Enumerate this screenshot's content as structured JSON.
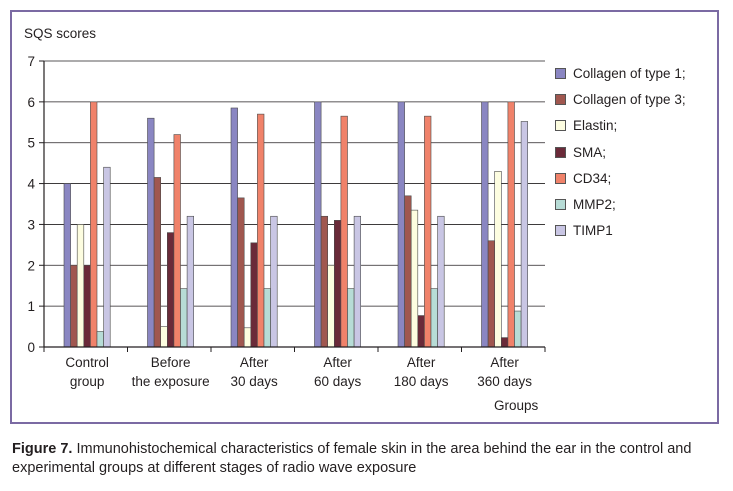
{
  "chart_data": {
    "type": "bar",
    "ylabel": "SQS scores",
    "xlabel": "Groups",
    "ylim": [
      0,
      7
    ],
    "yticks": [
      0,
      1,
      2,
      3,
      4,
      5,
      6,
      7
    ],
    "grid": true,
    "legend_position": "right",
    "categories": [
      [
        "Control",
        "group"
      ],
      [
        "Before",
        "the exposure"
      ],
      [
        "After",
        "30 days"
      ],
      [
        "After",
        "60 days"
      ],
      [
        "After",
        "180 days"
      ],
      [
        "After",
        "360 days"
      ]
    ],
    "series": [
      {
        "name": "Collagen of type 1;",
        "color": "#8a86c2",
        "values": [
          4.0,
          5.6,
          5.85,
          6.0,
          6.0,
          6.0
        ]
      },
      {
        "name": "Collagen of type 3;",
        "color": "#a0574f",
        "values": [
          2.0,
          4.15,
          3.65,
          3.2,
          3.7,
          2.6
        ]
      },
      {
        "name": "Elastin;",
        "color": "#fdfde0",
        "values": [
          3.0,
          0.5,
          0.47,
          2.0,
          3.35,
          4.3
        ]
      },
      {
        "name": "SMA;",
        "color": "#6a2a39",
        "values": [
          2.0,
          2.8,
          2.55,
          3.1,
          0.77,
          0.23
        ]
      },
      {
        "name": "CD34;",
        "color": "#f0826a",
        "values": [
          6.0,
          5.2,
          5.7,
          5.65,
          5.65,
          6.0
        ]
      },
      {
        "name": "MMP2;",
        "color": "#b7dcd6",
        "values": [
          0.38,
          1.43,
          1.43,
          1.43,
          1.43,
          0.88
        ]
      },
      {
        "name": "TIMP1",
        "color": "#c9c6e4",
        "values": [
          4.4,
          3.2,
          3.2,
          3.2,
          3.2,
          5.52
        ]
      }
    ]
  },
  "caption": {
    "label": "Figure 7.",
    "text": " Immunohistochemical characteristics of female skin in the area behind the ear in the control and experimental groups at different stages of radio wave exposure"
  }
}
